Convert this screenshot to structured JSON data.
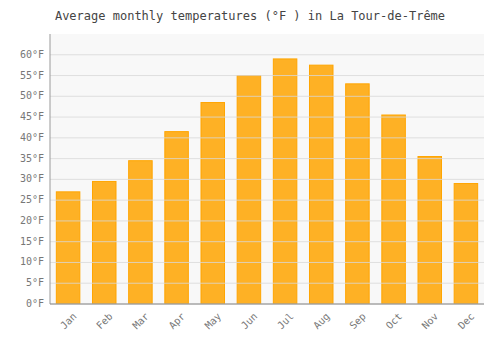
{
  "chart_data": {
    "type": "bar",
    "title": "Average monthly temperatures (°F ) in La Tour-de-Trême",
    "categories": [
      "Jan",
      "Feb",
      "Mar",
      "Apr",
      "May",
      "Jun",
      "Jul",
      "Aug",
      "Sep",
      "Oct",
      "Nov",
      "Dec"
    ],
    "values": [
      27,
      29.5,
      34.5,
      41.5,
      48.5,
      55,
      59,
      57.5,
      53,
      45.5,
      35.5,
      29
    ],
    "color": "#FFA500",
    "ylim": [
      0,
      65
    ],
    "yticks": [
      {
        "value": 0,
        "label": "0°F"
      },
      {
        "value": 5,
        "label": "5°F"
      },
      {
        "value": 10,
        "label": "10°F"
      },
      {
        "value": 15,
        "label": "15°F"
      },
      {
        "value": 20,
        "label": "20°F"
      },
      {
        "value": 25,
        "label": "25°F"
      },
      {
        "value": 30,
        "label": "30°F"
      },
      {
        "value": 35,
        "label": "35°F"
      },
      {
        "value": 40,
        "label": "40°F"
      },
      {
        "value": 45,
        "label": "45°F"
      },
      {
        "value": 50,
        "label": "50°F"
      },
      {
        "value": 55,
        "label": "55°F"
      },
      {
        "value": 60,
        "label": "60°F"
      }
    ],
    "grid": true
  }
}
